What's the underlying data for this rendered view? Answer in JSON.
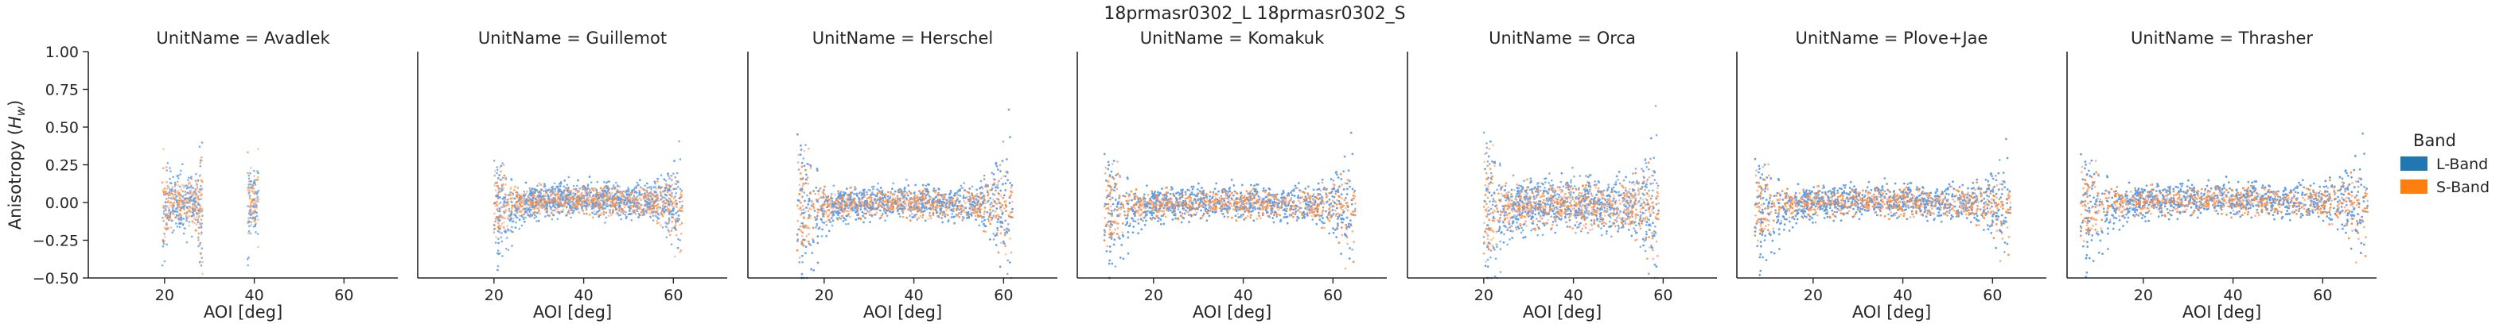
{
  "figure_title": "18prmasr0302_L 18prmasr0302_S",
  "chart_data": {
    "type": "scatter",
    "title": "18prmasr0302_L 18prmasr0302_S",
    "xlabel": "AOI [deg]",
    "ylabel": "Anisotropy (H_w)",
    "ylabel_parts": {
      "prefix": "Anisotropy (",
      "italic": "H",
      "sub": "w",
      "suffix": ")"
    },
    "xlim": [
      3,
      72
    ],
    "ylim": [
      -0.5,
      1.0
    ],
    "x_ticks": [
      "20",
      "40",
      "60"
    ],
    "y_ticks": [
      "1.00",
      "0.75",
      "0.50",
      "0.25",
      "0.00",
      "−0.25",
      "−0.50"
    ],
    "grid": false,
    "legend": {
      "title": "Band",
      "placement": "right",
      "entries": [
        {
          "label": "L-Band",
          "color": "#1f77b4"
        },
        {
          "label": "S-Band",
          "color": "#ff7f0e"
        }
      ]
    },
    "point_colors": {
      "L-Band": "#5b9ee8",
      "S-Band": "#ff8c3a",
      "overlap": "#f6b48f"
    },
    "facets": [
      {
        "title": "UnitName = Avadlek",
        "segments": [
          [
            19.5,
            28.5,
            -0.02,
            0.09,
            0.16
          ],
          [
            38.5,
            41,
            -0.01,
            0.09,
            0.18
          ]
        ]
      },
      {
        "title": "UnitName = Guillemot",
        "segments": [
          [
            20,
            62,
            0.0,
            0.05,
            0.11
          ]
        ]
      },
      {
        "title": "UnitName = Herschel",
        "segments": [
          [
            14,
            62,
            -0.02,
            0.05,
            0.2
          ]
        ]
      },
      {
        "title": "UnitName = Komakuk",
        "segments": [
          [
            9,
            65,
            -0.02,
            0.05,
            0.14
          ]
        ]
      },
      {
        "title": "UnitName = Orca",
        "segments": [
          [
            20,
            59,
            -0.03,
            0.08,
            0.18
          ]
        ]
      },
      {
        "title": "UnitName = Plove+Jae",
        "segments": [
          [
            7,
            64,
            -0.01,
            0.05,
            0.12
          ]
        ]
      },
      {
        "title": "UnitName = Thrasher",
        "segments": [
          [
            6,
            70,
            0.0,
            0.05,
            0.13
          ]
        ]
      }
    ]
  }
}
